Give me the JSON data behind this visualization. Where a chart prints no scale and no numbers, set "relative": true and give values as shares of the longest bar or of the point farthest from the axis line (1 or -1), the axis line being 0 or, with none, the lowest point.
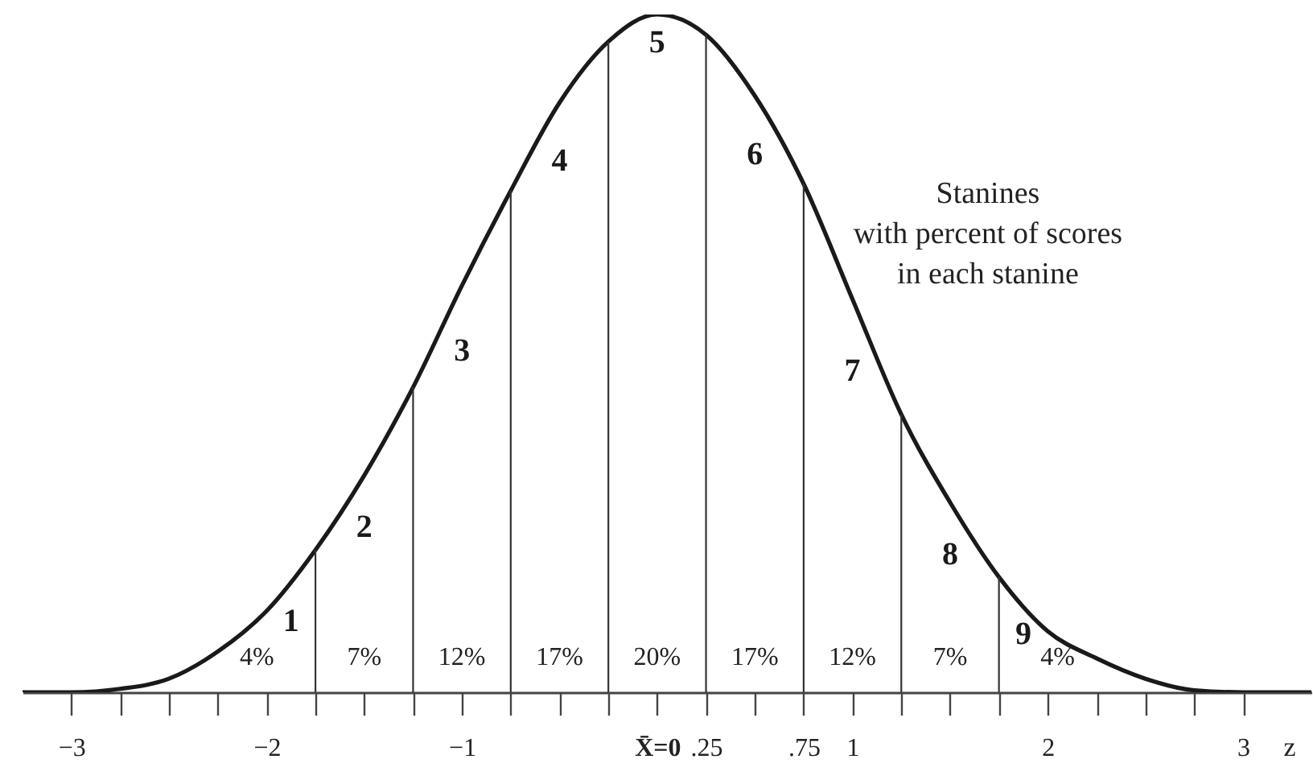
{
  "chart_data": {
    "type": "line",
    "relative": true,
    "xlabel": "z",
    "color": "#1a1a1a",
    "x": [
      -3.25,
      -3,
      -2.75,
      -2.5,
      -2.25,
      -2,
      -1.75,
      -1.5,
      -1.25,
      -1,
      -0.75,
      -0.5,
      -0.25,
      0,
      0.25,
      0.5,
      0.75,
      1,
      1.25,
      1.5,
      1.75,
      2,
      2.25,
      2.5,
      2.75,
      3,
      3.35
    ],
    "values": [
      0,
      0,
      0.005,
      0.02,
      0.06,
      0.12,
      0.21,
      0.32,
      0.45,
      0.6,
      0.74,
      0.87,
      0.96,
      1,
      0.97,
      0.88,
      0.75,
      0.58,
      0.41,
      0.28,
      0.17,
      0.09,
      0.05,
      0.02,
      0.003,
      0,
      0
    ],
    "xlim": [
      -3.25,
      3.35
    ],
    "xticks": [
      {
        "value": -3,
        "label": "−3"
      },
      {
        "value": -2.75,
        "label": null
      },
      {
        "value": -2.5,
        "label": null
      },
      {
        "value": -2.25,
        "label": null
      },
      {
        "value": -2,
        "label": "−2"
      },
      {
        "value": -1.75,
        "label": null
      },
      {
        "value": -1.5,
        "label": null
      },
      {
        "value": -1.25,
        "label": null
      },
      {
        "value": -1,
        "label": "−1"
      },
      {
        "value": -0.75,
        "label": null
      },
      {
        "value": -0.5,
        "label": null
      },
      {
        "value": -0.25,
        "label": null
      },
      {
        "value": 0,
        "label": "X̄=0"
      },
      {
        "value": 0.25,
        "label": ".25"
      },
      {
        "value": 0.5,
        "label": null
      },
      {
        "value": 0.75,
        "label": ".75"
      },
      1,
      {
        "value": 1.25,
        "label": null
      },
      {
        "value": 1.5,
        "label": null
      },
      {
        "value": 1.75,
        "label": null
      },
      2,
      {
        "value": 2.25,
        "label": null
      },
      {
        "value": 2.5,
        "label": null
      },
      {
        "value": 2.75,
        "label": null
      },
      3
    ],
    "ref_lines": [
      {
        "axis": "x",
        "value": -1.75,
        "color": "#333333"
      },
      {
        "axis": "x",
        "value": -1.25,
        "color": "#333333"
      },
      {
        "axis": "x",
        "value": -0.75,
        "color": "#333333"
      },
      {
        "axis": "x",
        "value": -0.25,
        "color": "#333333"
      },
      {
        "axis": "x",
        "value": 0.25,
        "color": "#333333"
      },
      {
        "axis": "x",
        "value": 0.75,
        "color": "#333333"
      },
      {
        "axis": "x",
        "value": 1.25,
        "color": "#333333"
      },
      {
        "axis": "x",
        "value": 1.75,
        "color": "#333333"
      }
    ],
    "annotations": [
      "1",
      "2",
      "3",
      "4",
      "5",
      "6",
      "7",
      "8",
      "9",
      "4%",
      "7%",
      "12%",
      "17%",
      "20%",
      "17%",
      "12%",
      "7%",
      "4%",
      "Stanines\nwith percent of scores\nin each stanine"
    ]
  }
}
